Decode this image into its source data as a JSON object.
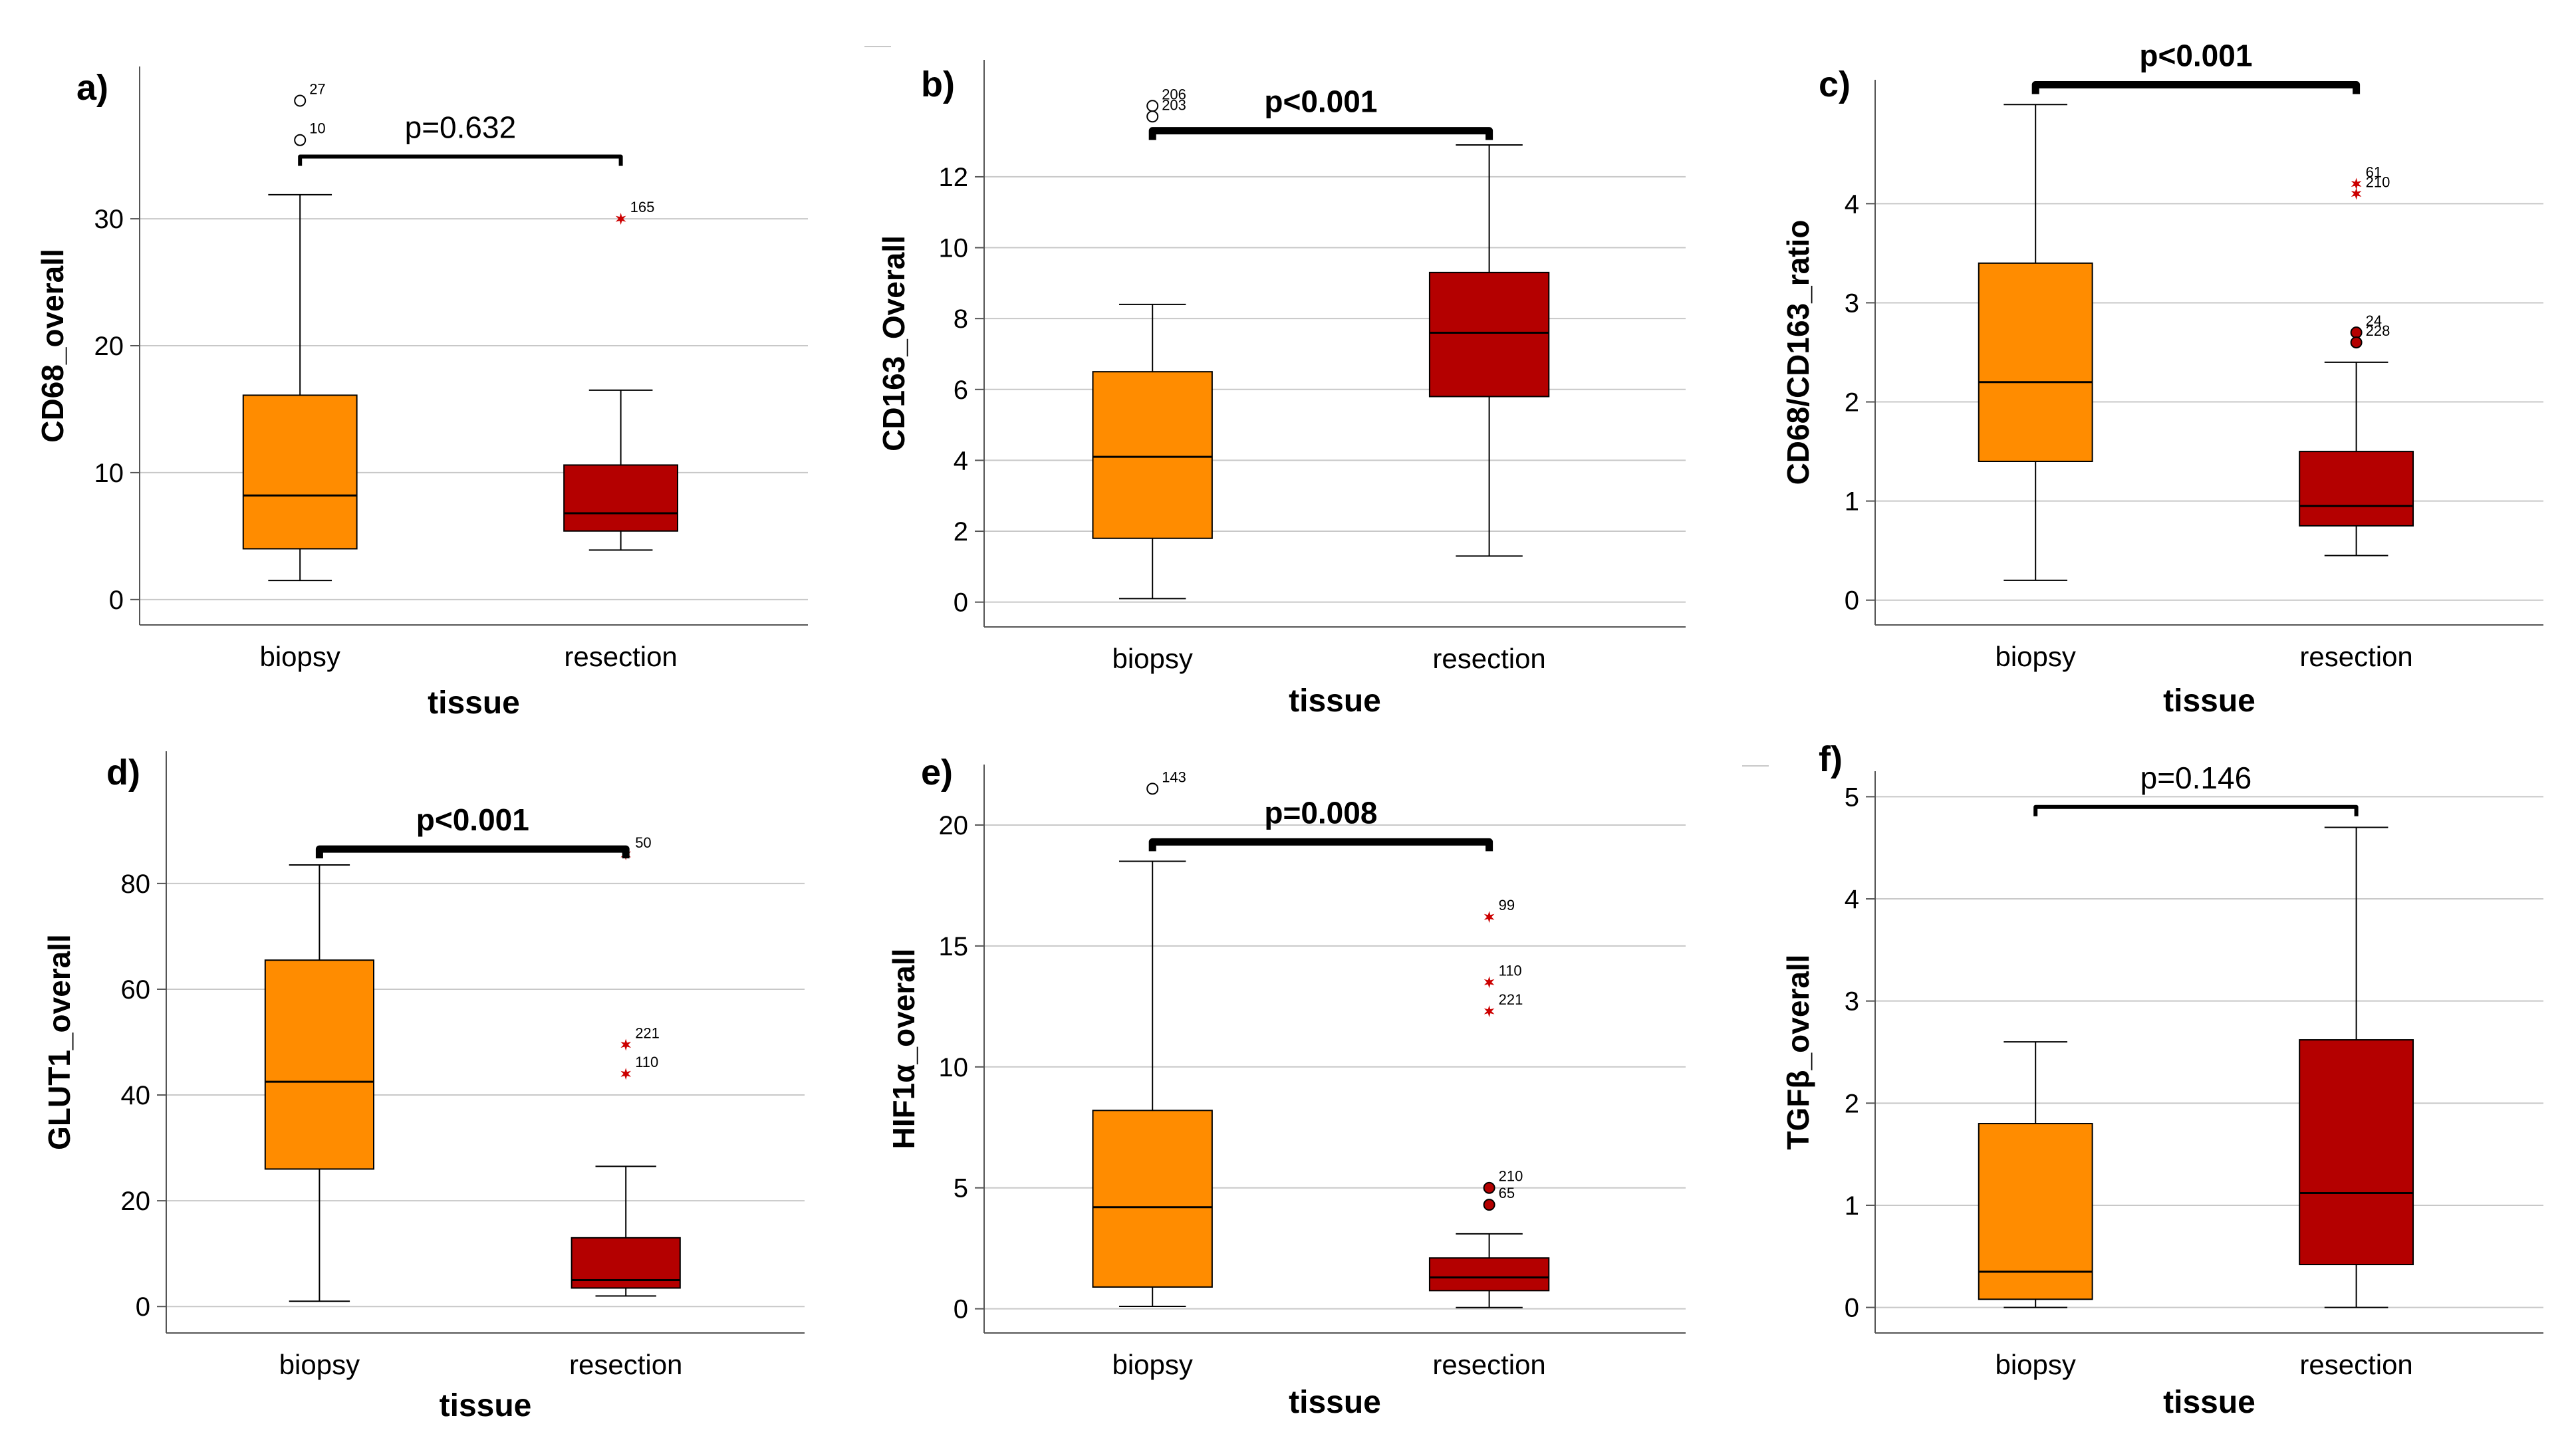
{
  "colors": {
    "biopsy": "#ff8c00",
    "resection": "#b40000",
    "outlier_star": "#cc0000",
    "grid": "#c8c8c8",
    "axis": "#555555"
  },
  "chart_data": [
    {
      "type": "boxplot",
      "panel": "a)",
      "ylabel": "CD68_overall",
      "xlabel": "tissue",
      "categories": [
        "biopsy",
        "resection"
      ],
      "ylim": [
        -2,
        42
      ],
      "yticks": [
        0,
        10,
        20,
        30
      ],
      "grid": true,
      "series": [
        {
          "name": "biopsy",
          "min": 1.5,
          "q1": 4.0,
          "median": 8.2,
          "q3": 16.1,
          "max": 31.9,
          "outliers": [
            {
              "label": "27",
              "value": 39.3,
              "marker": "circle"
            },
            {
              "label": "10",
              "value": 36.2,
              "marker": "circle"
            }
          ]
        },
        {
          "name": "resection",
          "min": 3.9,
          "q1": 5.4,
          "median": 6.8,
          "q3": 10.6,
          "max": 16.5,
          "outliers": [
            {
              "label": "165",
              "value": 30.0,
              "marker": "star"
            }
          ]
        }
      ],
      "annotation": {
        "text": "p=0.632",
        "bold": false,
        "bracket_value": 34.9
      }
    },
    {
      "type": "boxplot",
      "panel": "b)",
      "ylabel": "CD163_Overall",
      "xlabel": "tissue",
      "categories": [
        "biopsy",
        "resection"
      ],
      "ylim": [
        -0.7,
        15.3
      ],
      "yticks": [
        0,
        2,
        4,
        6,
        8,
        10,
        12
      ],
      "grid": true,
      "series": [
        {
          "name": "biopsy",
          "min": 0.1,
          "q1": 1.8,
          "median": 4.1,
          "q3": 6.5,
          "max": 8.4,
          "outliers": [
            {
              "label": "206",
              "value": 14.0,
              "marker": "circle"
            },
            {
              "label": "203",
              "value": 13.7,
              "marker": "circle"
            }
          ]
        },
        {
          "name": "resection",
          "min": 1.3,
          "q1": 5.8,
          "median": 7.6,
          "q3": 9.3,
          "max": 12.9,
          "outliers": []
        }
      ],
      "annotation": {
        "text": "p<0.001",
        "bold": true,
        "bracket_value": 13.3
      }
    },
    {
      "type": "boxplot",
      "panel": "c)",
      "ylabel": "CD68/CD163_ratio",
      "xlabel": "tissue",
      "categories": [
        "biopsy",
        "resection"
      ],
      "ylim": [
        -0.25,
        5.25
      ],
      "yticks": [
        0,
        1,
        2,
        3,
        4
      ],
      "grid": true,
      "series": [
        {
          "name": "biopsy",
          "min": 0.2,
          "q1": 1.4,
          "median": 2.2,
          "q3": 3.4,
          "max": 5.0,
          "outliers": []
        },
        {
          "name": "resection",
          "min": 0.45,
          "q1": 0.75,
          "median": 0.95,
          "q3": 1.5,
          "max": 2.4,
          "outliers": [
            {
              "label": "61",
              "value": 4.2,
              "marker": "star"
            },
            {
              "label": "210",
              "value": 4.1,
              "marker": "star"
            },
            {
              "label": "24",
              "value": 2.7,
              "marker": "dot"
            },
            {
              "label": "228",
              "value": 2.6,
              "marker": "dot"
            }
          ]
        }
      ],
      "annotation": {
        "text": "p<0.001",
        "bold": true,
        "bracket_value": 5.2
      }
    },
    {
      "type": "boxplot",
      "panel": "d)",
      "ylabel": "GLUT1_overall",
      "xlabel": "tissue",
      "categories": [
        "biopsy",
        "resection"
      ],
      "ylim": [
        -5,
        105
      ],
      "yticks": [
        0,
        20,
        40,
        60,
        80
      ],
      "grid": true,
      "series": [
        {
          "name": "biopsy",
          "min": 1.0,
          "q1": 26.0,
          "median": 42.5,
          "q3": 65.5,
          "max": 83.5,
          "outliers": []
        },
        {
          "name": "resection",
          "min": 2.0,
          "q1": 3.5,
          "median": 5.0,
          "q3": 13.0,
          "max": 26.5,
          "outliers": [
            {
              "label": "50",
              "value": 85.5,
              "marker": "star"
            },
            {
              "label": "221",
              "value": 49.5,
              "marker": "star"
            },
            {
              "label": "110",
              "value": 44.0,
              "marker": "star"
            }
          ]
        }
      ],
      "annotation": {
        "text": "p<0.001",
        "bold": true,
        "bracket_value": 86.5
      }
    },
    {
      "type": "boxplot",
      "panel": "e)",
      "ylabel": "HIF1α_overall",
      "xlabel": "tissue",
      "categories": [
        "biopsy",
        "resection"
      ],
      "ylim": [
        -1,
        22.5
      ],
      "yticks": [
        0,
        5,
        10,
        15,
        20
      ],
      "grid": true,
      "series": [
        {
          "name": "biopsy",
          "min": 0.1,
          "q1": 0.9,
          "median": 4.2,
          "q3": 8.2,
          "max": 18.5,
          "outliers": [
            {
              "label": "143",
              "value": 21.5,
              "marker": "circle"
            }
          ]
        },
        {
          "name": "resection",
          "min": 0.05,
          "q1": 0.75,
          "median": 1.3,
          "q3": 2.1,
          "max": 3.1,
          "outliers": [
            {
              "label": "99",
              "value": 16.2,
              "marker": "star"
            },
            {
              "label": "110",
              "value": 13.5,
              "marker": "star"
            },
            {
              "label": "221",
              "value": 12.3,
              "marker": "star"
            },
            {
              "label": "210",
              "value": 5.0,
              "marker": "dot"
            },
            {
              "label": "65",
              "value": 4.3,
              "marker": "dot"
            }
          ]
        }
      ],
      "annotation": {
        "text": "p=0.008",
        "bold": true,
        "bracket_value": 19.3
      }
    },
    {
      "type": "boxplot",
      "panel": "f)",
      "ylabel": "TGFβ_overall",
      "xlabel": "tissue",
      "categories": [
        "biopsy",
        "resection"
      ],
      "ylim": [
        -0.25,
        5.25
      ],
      "yticks": [
        0,
        1,
        2,
        3,
        4,
        5
      ],
      "grid": true,
      "series": [
        {
          "name": "biopsy",
          "min": 0.0,
          "q1": 0.08,
          "median": 0.35,
          "q3": 1.8,
          "max": 2.6,
          "outliers": []
        },
        {
          "name": "resection",
          "min": 0.0,
          "q1": 0.42,
          "median": 1.12,
          "q3": 2.62,
          "max": 4.7,
          "outliers": []
        }
      ],
      "annotation": {
        "text": "p=0.146",
        "bold": false,
        "bracket_value": 4.9
      }
    }
  ]
}
